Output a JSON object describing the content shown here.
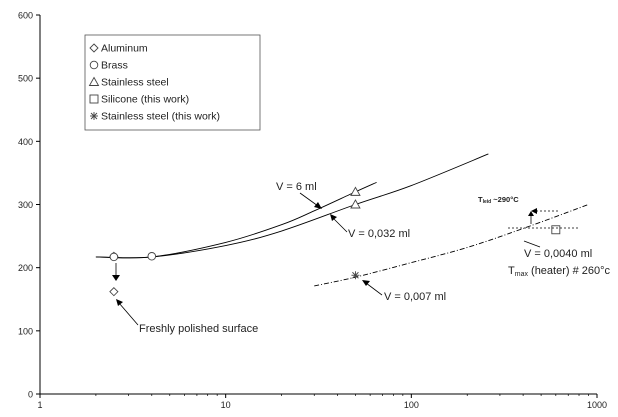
{
  "chart_data": {
    "type": "scatter",
    "x_scale": "log",
    "xlim": [
      1,
      1000
    ],
    "ylim": [
      0,
      600
    ],
    "x_ticks": [
      1,
      10,
      100,
      1000
    ],
    "x_tick_labels": [
      "1",
      "10",
      "100",
      "1000"
    ],
    "y_ticks": [
      0,
      100,
      200,
      300,
      400,
      500,
      600
    ],
    "y_tick_labels": [
      "0",
      "100",
      "200",
      "300",
      "400",
      "500",
      "600"
    ],
    "grid": false,
    "legend_position": "top-left",
    "legend": [
      {
        "marker": "diamond",
        "label": "Aluminum"
      },
      {
        "marker": "circle",
        "label": "Brass"
      },
      {
        "marker": "triangle",
        "label": "Stainless steel"
      },
      {
        "marker": "square",
        "label": "Silicone (this work)"
      },
      {
        "marker": "asterisk",
        "label": "Stainless steel (this work)"
      }
    ],
    "series": [
      {
        "name": "Aluminum",
        "marker": "diamond",
        "x": [
          2.5,
          2.5
        ],
        "y": [
          218,
          162
        ]
      },
      {
        "name": "Brass",
        "marker": "circle",
        "x": [
          2.5,
          4
        ],
        "y": [
          217,
          218
        ]
      },
      {
        "name": "Stainless steel",
        "marker": "triangle",
        "x": [
          50,
          50
        ],
        "y": [
          320,
          300
        ]
      },
      {
        "name": "Silicone (this work)",
        "marker": "square",
        "x": [
          600
        ],
        "y": [
          260
        ]
      },
      {
        "name": "Stainless steel (this work)",
        "marker": "asterisk",
        "x": [
          50
        ],
        "y": [
          188
        ]
      }
    ],
    "curves": [
      {
        "label": "V = 6 ml",
        "style": "solid",
        "x": [
          2,
          4,
          10,
          20,
          30,
          50,
          65
        ],
        "y": [
          217,
          217,
          240,
          268,
          290,
          320,
          335
        ]
      },
      {
        "label": "V = 0,032 ml",
        "style": "solid",
        "x": [
          2,
          4,
          10,
          20,
          50,
          100,
          260
        ],
        "y": [
          217,
          217,
          235,
          258,
          300,
          330,
          380
        ]
      },
      {
        "label": "V = 0,007 ml",
        "style": "dash-dot",
        "x": [
          30,
          50,
          100,
          200,
          400,
          900
        ],
        "y": [
          171,
          185,
          208,
          232,
          262,
          300
        ]
      }
    ],
    "annotations": [
      {
        "text": "Freshly polished surface"
      },
      {
        "text": "V = 0,0040 ml"
      },
      {
        "main": "T",
        "sub": "max",
        "rest": " (heater) # 260°c"
      },
      {
        "main": "T",
        "sub": "leid",
        "rest": " ~290°C"
      }
    ]
  }
}
